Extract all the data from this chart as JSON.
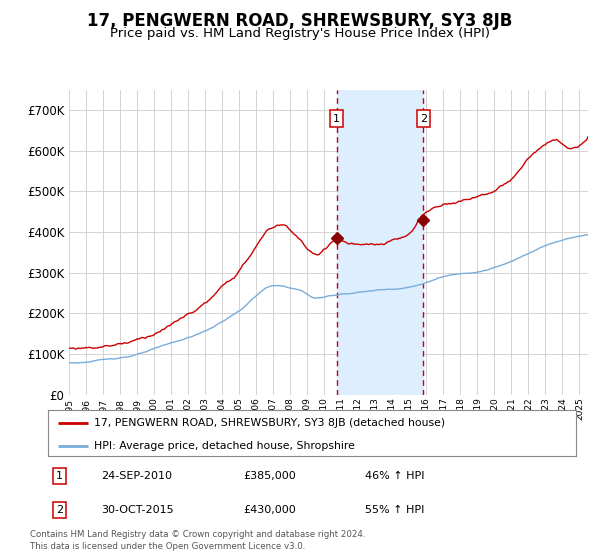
{
  "title": "17, PENGWERN ROAD, SHREWSBURY, SY3 8JB",
  "subtitle": "Price paid vs. HM Land Registry's House Price Index (HPI)",
  "title_fontsize": 12,
  "subtitle_fontsize": 9.5,
  "background_color": "#ffffff",
  "plot_bg_color": "#ffffff",
  "grid_color": "#cccccc",
  "hpi_line_color": "#7aadda",
  "price_line_color": "#cc0000",
  "sale1_date": 2010.73,
  "sale1_price": 385000,
  "sale2_date": 2015.83,
  "sale2_price": 430000,
  "shade_color": "#ddeeff",
  "dashed_line_color": "#cc0000",
  "legend_label_red": "17, PENGWERN ROAD, SHREWSBURY, SY3 8JB (detached house)",
  "legend_label_blue": "HPI: Average price, detached house, Shropshire",
  "annotation1_date": "24-SEP-2010",
  "annotation1_price": "£385,000",
  "annotation1_hpi": "46% ↑ HPI",
  "annotation2_date": "30-OCT-2015",
  "annotation2_price": "£430,000",
  "annotation2_hpi": "55% ↑ HPI",
  "footer1": "Contains HM Land Registry data © Crown copyright and database right 2024.",
  "footer2": "This data is licensed under the Open Government Licence v3.0.",
  "ylim": [
    0,
    750000
  ],
  "xlim_start": 1995,
  "xlim_end": 2025.5
}
